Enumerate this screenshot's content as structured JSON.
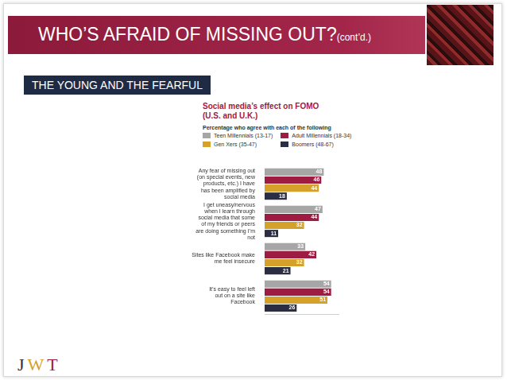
{
  "slide": {
    "title": "WHO’S AFRAID OF MISSING OUT?",
    "title_suffix": "(cont’d.)",
    "section": "THE YOUNG AND THE FEARFUL",
    "logo": "JWT"
  },
  "chart_data": {
    "type": "bar",
    "orientation": "horizontal",
    "title": "Social media’s effect on FOMO (U.S. and U.K.)",
    "subtitle": "Percentage who agree with each of the following",
    "categories": [
      "Any fear of missing out (on special events, new products, etc.) I have has been amplified by social media",
      "I get uneasy/nervous when I learn through social media that some of my friends or peers are doing something I’m not",
      "Sites like Facebook make me feel insecure",
      "It’s easy to feel left out on a site like Facebook"
    ],
    "series": [
      {
        "name": "Teen Millennials (13-17)",
        "color": "#a6a6a6",
        "values": [
          48,
          47,
          33,
          54
        ]
      },
      {
        "name": "Adult Millennials (18-34)",
        "color": "#9e1b42",
        "values": [
          46,
          44,
          42,
          54
        ]
      },
      {
        "name": "Gen Xers (35-47)",
        "color": "#d4a12a",
        "values": [
          44,
          32,
          32,
          51
        ]
      },
      {
        "name": "Boomers (48-67)",
        "color": "#2b2d42",
        "values": [
          18,
          11,
          21,
          26
        ]
      }
    ],
    "xlim": [
      0,
      60
    ],
    "legend": "top",
    "data_labels": true,
    "tick_labels": "y",
    "grid": false
  }
}
